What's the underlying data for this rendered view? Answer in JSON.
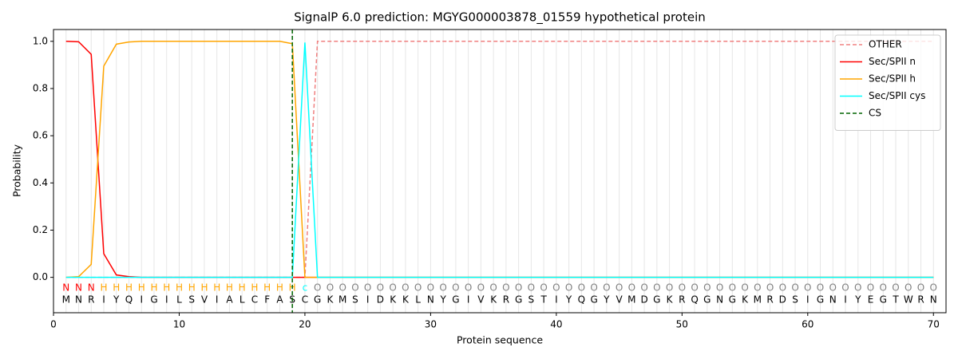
{
  "chart_data": {
    "type": "line",
    "title": "SignalP 6.0 prediction: MGYG000003878_01559 hypothetical protein",
    "xlabel": "Protein sequence",
    "ylabel": "Probability",
    "x": [
      1,
      2,
      3,
      4,
      5,
      6,
      7,
      8,
      9,
      10,
      11,
      12,
      13,
      14,
      15,
      16,
      17,
      18,
      19,
      20,
      21,
      22,
      23,
      24,
      25,
      26,
      27,
      28,
      29,
      30,
      31,
      32,
      33,
      34,
      35,
      36,
      37,
      38,
      39,
      40,
      41,
      42,
      43,
      44,
      45,
      46,
      47,
      48,
      49,
      50,
      51,
      52,
      53,
      54,
      55,
      56,
      57,
      58,
      59,
      60,
      61,
      62,
      63,
      64,
      65,
      66,
      67,
      68,
      69,
      70
    ],
    "sequence": [
      "M",
      "N",
      "R",
      "I",
      "Y",
      "Q",
      "I",
      "G",
      "I",
      "L",
      "S",
      "V",
      "I",
      "A",
      "L",
      "C",
      "F",
      "A",
      "S",
      "C",
      "G",
      "K",
      "M",
      "S",
      "I",
      "D",
      "K",
      "K",
      "L",
      "N",
      "Y",
      "G",
      "I",
      "V",
      "K",
      "R",
      "G",
      "S",
      "T",
      "I",
      "Y",
      "Q",
      "G",
      "Y",
      "V",
      "M",
      "D",
      "G",
      "K",
      "R",
      "Q",
      "G",
      "N",
      "G",
      "K",
      "M",
      "R",
      "D",
      "S",
      "I",
      "G",
      "N",
      "I",
      "Y",
      "E",
      "G",
      "T",
      "W",
      "R",
      "N"
    ],
    "regions": [
      "N",
      "N",
      "N",
      "H",
      "H",
      "H",
      "H",
      "H",
      "H",
      "H",
      "H",
      "H",
      "H",
      "H",
      "H",
      "H",
      "H",
      "H",
      "H",
      "c",
      "O",
      "O",
      "O",
      "O",
      "O",
      "O",
      "O",
      "O",
      "O",
      "O",
      "O",
      "O",
      "O",
      "O",
      "O",
      "O",
      "O",
      "O",
      "O",
      "O",
      "O",
      "O",
      "O",
      "O",
      "O",
      "O",
      "O",
      "O",
      "O",
      "O",
      "O",
      "O",
      "O",
      "O",
      "O",
      "O",
      "O",
      "O",
      "O",
      "O",
      "O",
      "O",
      "O",
      "O",
      "O",
      "O",
      "O",
      "O",
      "O",
      "O"
    ],
    "region_colors": {
      "N": "#ff0000",
      "H": "#ffa500",
      "c": "#00ffff",
      "O": "#808080"
    },
    "series": [
      {
        "name": "OTHER",
        "color": "#f08080",
        "dash": true,
        "values": [
          0,
          0,
          0,
          0,
          0,
          0,
          0,
          0,
          0,
          0,
          0,
          0,
          0,
          0,
          0,
          0,
          0,
          0,
          0,
          0,
          1,
          1,
          1,
          1,
          1,
          1,
          1,
          1,
          1,
          1,
          1,
          1,
          1,
          1,
          1,
          1,
          1,
          1,
          1,
          1,
          1,
          1,
          1,
          1,
          1,
          1,
          1,
          1,
          1,
          1,
          1,
          1,
          1,
          1,
          1,
          1,
          1,
          1,
          1,
          1,
          1,
          1,
          1,
          1,
          1,
          1,
          1,
          1,
          1,
          1
        ]
      },
      {
        "name": "Sec/SPII n",
        "color": "#ff0000",
        "values": [
          1.0,
          0.998,
          0.945,
          0.1,
          0.01,
          0.003,
          0,
          0,
          0,
          0,
          0,
          0,
          0,
          0,
          0,
          0,
          0,
          0,
          0,
          0,
          0,
          0,
          0,
          0,
          0,
          0,
          0,
          0,
          0,
          0,
          0,
          0,
          0,
          0,
          0,
          0,
          0,
          0,
          0,
          0,
          0,
          0,
          0,
          0,
          0,
          0,
          0,
          0,
          0,
          0,
          0,
          0,
          0,
          0,
          0,
          0,
          0,
          0,
          0,
          0,
          0,
          0,
          0,
          0,
          0,
          0,
          0,
          0,
          0,
          0
        ]
      },
      {
        "name": "Sec/SPII h",
        "color": "#ffa500",
        "values": [
          0,
          0.003,
          0.055,
          0.895,
          0.988,
          0.997,
          1,
          1,
          1,
          1,
          1,
          1,
          1,
          1,
          1,
          1,
          1,
          1,
          0.99,
          0,
          0,
          0,
          0,
          0,
          0,
          0,
          0,
          0,
          0,
          0,
          0,
          0,
          0,
          0,
          0,
          0,
          0,
          0,
          0,
          0,
          0,
          0,
          0,
          0,
          0,
          0,
          0,
          0,
          0,
          0,
          0,
          0,
          0,
          0,
          0,
          0,
          0,
          0,
          0,
          0,
          0,
          0,
          0,
          0,
          0,
          0,
          0,
          0,
          0,
          0
        ]
      },
      {
        "name": "Sec/SPII cys",
        "color": "#00ffff",
        "values": [
          0,
          0,
          0,
          0,
          0,
          0,
          0,
          0,
          0,
          0,
          0,
          0,
          0,
          0,
          0,
          0,
          0,
          0,
          0,
          0.995,
          0,
          0,
          0,
          0,
          0,
          0,
          0,
          0,
          0,
          0,
          0,
          0,
          0,
          0,
          0,
          0,
          0,
          0,
          0,
          0,
          0,
          0,
          0,
          0,
          0,
          0,
          0,
          0,
          0,
          0,
          0,
          0,
          0,
          0,
          0,
          0,
          0,
          0,
          0,
          0,
          0,
          0,
          0,
          0,
          0,
          0,
          0,
          0,
          0,
          0
        ]
      }
    ],
    "vlines": [
      {
        "name": "CS",
        "color": "#006400",
        "x": 19
      }
    ],
    "xlim": [
      0,
      71
    ],
    "ylim": [
      -0.15,
      1.05
    ],
    "xticks": [
      0,
      10,
      20,
      30,
      40,
      50,
      60,
      70
    ],
    "yticks": [
      {
        "value": 0,
        "label": "0.0"
      },
      {
        "value": 0.2,
        "label": "0.2"
      },
      {
        "value": 0.4,
        "label": "0.4"
      },
      {
        "value": 0.6,
        "label": "0.6"
      },
      {
        "value": 0.8,
        "label": "0.8"
      },
      {
        "value": 1.0,
        "label": "1.0"
      }
    ],
    "grid_x": true,
    "legend": "upper right"
  }
}
